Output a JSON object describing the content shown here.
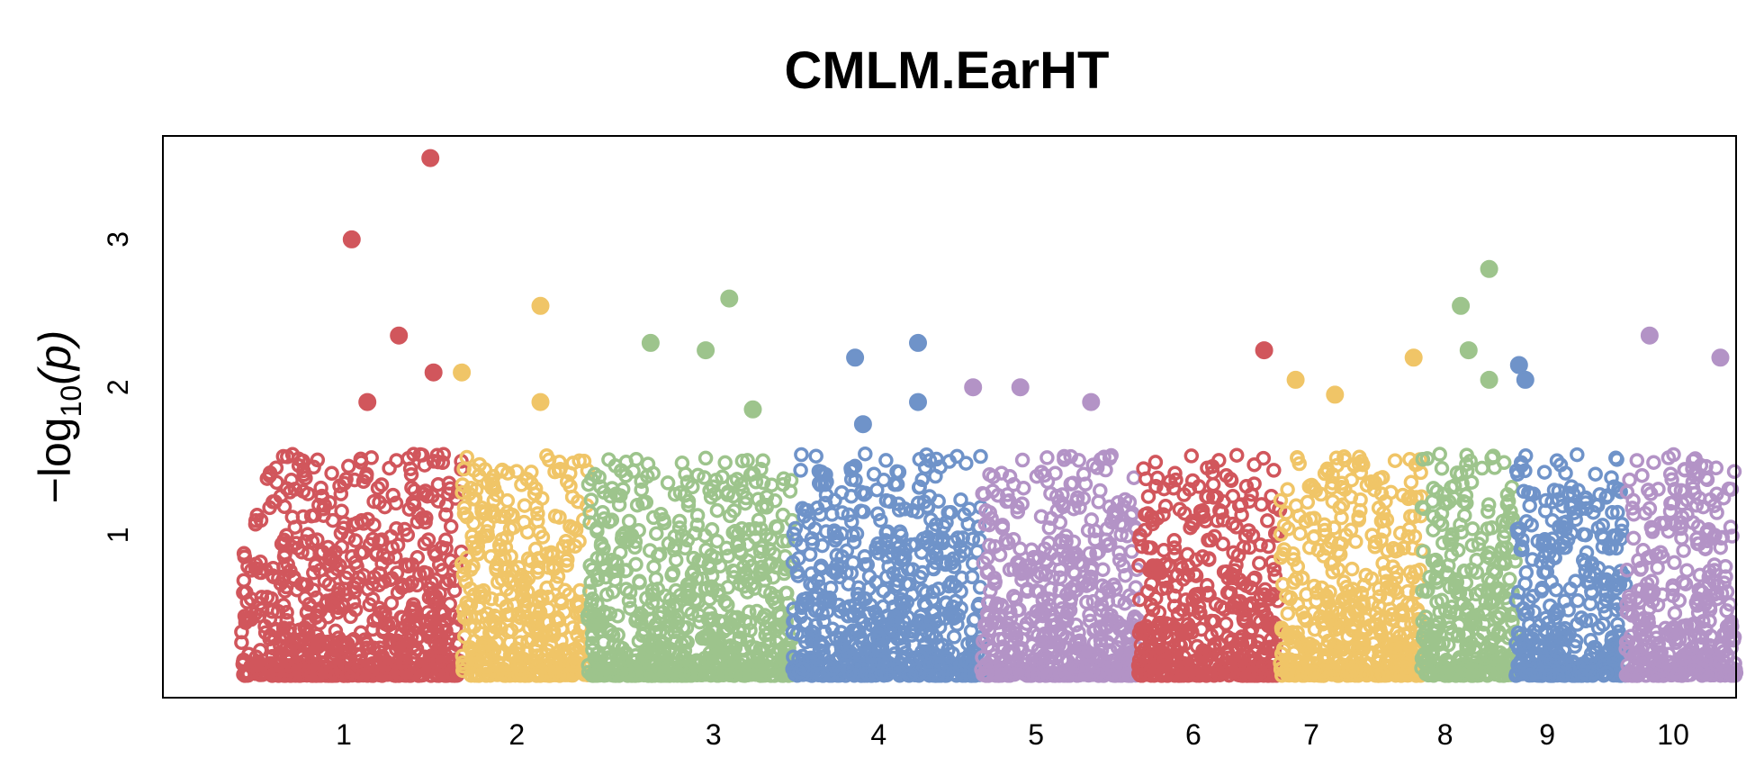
{
  "chart_data": {
    "type": "scatter",
    "title": "CMLM.EarHT",
    "ylabel": "−log10(p)",
    "ylabel_parts": {
      "pre": "−log",
      "sub": "10",
      "arg": "(p)"
    },
    "xlabel": "",
    "x_tick_labels": [
      "1",
      "2",
      "3",
      "4",
      "5",
      "6",
      "7",
      "8",
      "9",
      "10"
    ],
    "y_ticks": [
      1,
      2,
      3
    ],
    "y_tick_labels": [
      "1",
      "2",
      "3"
    ],
    "ylim": [
      -0.1,
      3.7
    ],
    "xlim": [
      0,
      100
    ],
    "grid": false,
    "legend": "none",
    "chromosome_colors": [
      "#d1565c",
      "#f0c567",
      "#9dc48c",
      "#6f93c9",
      "#b393c6"
    ],
    "chromosomes": [
      {
        "chr": "1",
        "range": [
          4,
          26
        ],
        "tick_x": 11.5
      },
      {
        "chr": "2",
        "range": [
          26,
          42
        ],
        "tick_x": 22.5
      },
      {
        "chr": "3",
        "range": [
          42,
          59
        ],
        "tick_x": 35
      },
      {
        "chr": "4",
        "range": [
          59,
          73
        ],
        "tick_x": 45.5
      },
      {
        "chr": "5",
        "range": [
          73,
          85
        ],
        "tick_x": 55.5
      },
      {
        "chr": "6",
        "range": [
          85,
          93
        ],
        "tick_x": 65.5
      },
      {
        "chr": "7",
        "range": [
          93,
          101
        ],
        "tick_x": 73
      },
      {
        "chr": "8",
        "range": [
          101,
          107
        ],
        "tick_x": 81.5
      },
      {
        "chr": "9",
        "range": [
          107,
          114
        ],
        "tick_x": 88
      },
      {
        "chr": "10",
        "range": [
          114,
          120
        ],
        "tick_x": 96
      }
    ],
    "highlighted_points": [
      {
        "chr": "1",
        "x": 12,
        "y": 3.0
      },
      {
        "chr": "1",
        "x": 17,
        "y": 3.55
      },
      {
        "chr": "1",
        "x": 15,
        "y": 2.35
      },
      {
        "chr": "1",
        "x": 17.2,
        "y": 2.1
      },
      {
        "chr": "1",
        "x": 13,
        "y": 1.9
      },
      {
        "chr": "2",
        "x": 19,
        "y": 2.1
      },
      {
        "chr": "2",
        "x": 24,
        "y": 2.55
      },
      {
        "chr": "2",
        "x": 24,
        "y": 1.9
      },
      {
        "chr": "3",
        "x": 31,
        "y": 2.3
      },
      {
        "chr": "3",
        "x": 34.5,
        "y": 2.25
      },
      {
        "chr": "3",
        "x": 36,
        "y": 2.6
      },
      {
        "chr": "3",
        "x": 37.5,
        "y": 1.85
      },
      {
        "chr": "4",
        "x": 44,
        "y": 2.2
      },
      {
        "chr": "4",
        "x": 48,
        "y": 2.3
      },
      {
        "chr": "4",
        "x": 48,
        "y": 1.9
      },
      {
        "chr": "4",
        "x": 44.5,
        "y": 1.75
      },
      {
        "chr": "5",
        "x": 51.5,
        "y": 2.0
      },
      {
        "chr": "5",
        "x": 54.5,
        "y": 2.0
      },
      {
        "chr": "5",
        "x": 59,
        "y": 1.9
      },
      {
        "chr": "6",
        "x": 70,
        "y": 2.25
      },
      {
        "chr": "7",
        "x": 72,
        "y": 2.05
      },
      {
        "chr": "7",
        "x": 74.5,
        "y": 1.95
      },
      {
        "chr": "7",
        "x": 79.5,
        "y": 2.2
      },
      {
        "chr": "8",
        "x": 82.5,
        "y": 2.55
      },
      {
        "chr": "8",
        "x": 84.3,
        "y": 2.8
      },
      {
        "chr": "8",
        "x": 83,
        "y": 2.25
      },
      {
        "chr": "8",
        "x": 84.3,
        "y": 2.05
      },
      {
        "chr": "9",
        "x": 86.2,
        "y": 2.15
      },
      {
        "chr": "9",
        "x": 86.6,
        "y": 2.05
      },
      {
        "chr": "10",
        "x": 94.5,
        "y": 2.35
      },
      {
        "chr": "10",
        "x": 99,
        "y": 2.2
      }
    ]
  }
}
